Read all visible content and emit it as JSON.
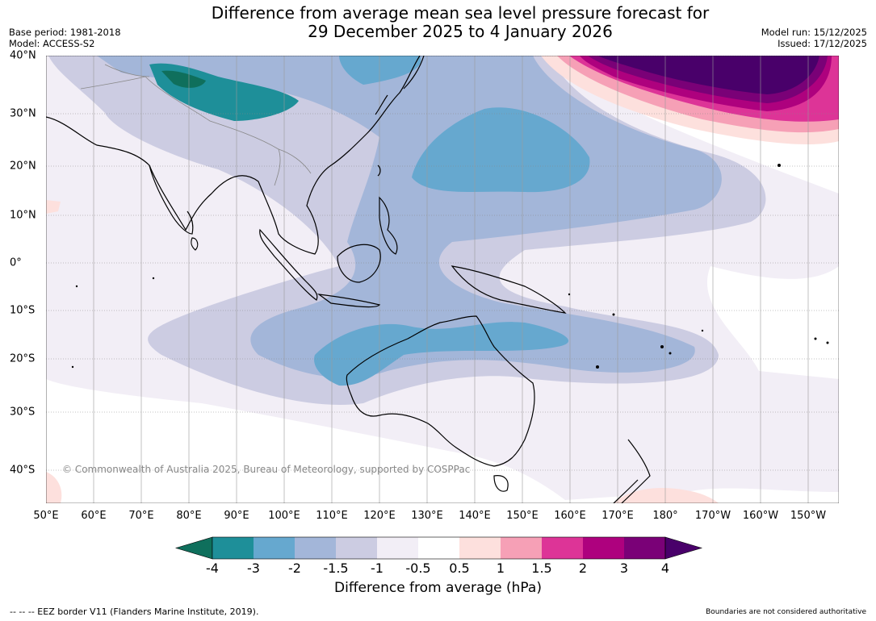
{
  "title_line1": "Difference from average mean sea level pressure forecast for",
  "title_line2": "29 December 2025 to 4 January 2026",
  "meta_left": {
    "base_period": "Base period: 1981-2018",
    "model": "Model: ACCESS-S2"
  },
  "meta_right": {
    "model_run": "Model run: 15/12/2025",
    "issued": "Issued: 17/12/2025"
  },
  "copyright": "© Commonwealth of Australia 2025, Bureau of Meteorology, supported by COSPPac",
  "lon_labels": [
    "50°E",
    "60°E",
    "70°E",
    "80°E",
    "90°E",
    "100°E",
    "110°E",
    "120°E",
    "130°E",
    "140°E",
    "150°E",
    "160°E",
    "170°E",
    "180°",
    "170°W",
    "160°W",
    "150°W"
  ],
  "lat_labels": [
    "40°N",
    "30°N",
    "20°N",
    "10°N",
    "0°",
    "10°S",
    "20°S",
    "30°S",
    "40°S"
  ],
  "colorbar": {
    "labels": [
      "-4",
      "-3",
      "-2",
      "-1.5",
      "-1",
      "-0.5",
      "0.5",
      "1",
      "1.5",
      "2",
      "3",
      "4"
    ],
    "colors": [
      "#0f6f5c",
      "#1e8f99",
      "#66a8cf",
      "#a3b6d9",
      "#cccce2",
      "#f2eef6",
      "#ffffff",
      "#fde0dd",
      "#f6a0b6",
      "#dd3497",
      "#ae017e",
      "#7a0177",
      "#49006a"
    ],
    "title": "Difference from average (hPa)"
  },
  "footer_left": "--  --  -- EEZ border V11 (Flanders Marine Institute, 2019).",
  "footer_right": "Boundaries are not considered authoritative"
}
